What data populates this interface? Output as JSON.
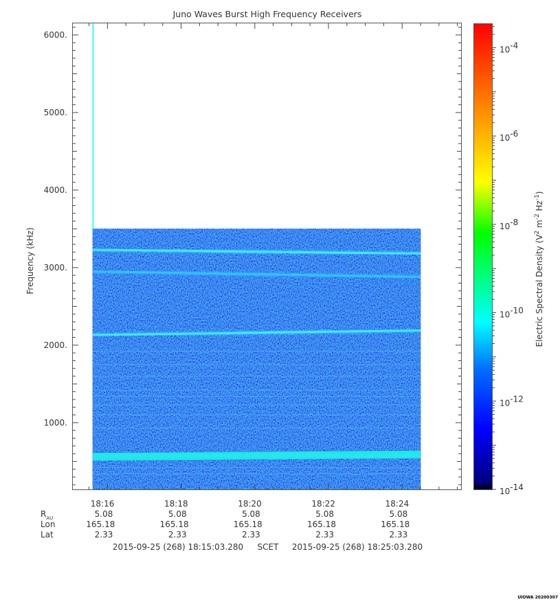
{
  "credit": "UIOWA 20200307",
  "chart_data": {
    "type": "heatmap",
    "title": "Juno Waves Burst High Frequency Receivers",
    "ylabel": "Frequency (kHz)",
    "ylim": [
      140,
      6150
    ],
    "yticks": [
      {
        "value": 1000,
        "label": "1000."
      },
      {
        "value": 2000,
        "label": "2000."
      },
      {
        "value": 3000,
        "label": "3000."
      },
      {
        "value": 4000,
        "label": "4000."
      },
      {
        "value": 5000,
        "label": "5000."
      },
      {
        "value": 6000,
        "label": "6000."
      }
    ],
    "xlim_minutes": [
      15.06,
      25.6
    ],
    "xticks": [
      {
        "minute": 16,
        "label": "18:16",
        "r_au": "5.08",
        "lon": "165.18",
        "lat": "2.33"
      },
      {
        "minute": 18,
        "label": "18:18",
        "r_au": "5.08",
        "lon": "165.18",
        "lat": "2.33"
      },
      {
        "minute": 20,
        "label": "18:20",
        "r_au": "5.08",
        "lon": "165.18",
        "lat": "2.33"
      },
      {
        "minute": 22,
        "label": "18:22",
        "r_au": "5.08",
        "lon": "165.18",
        "lat": "2.33"
      },
      {
        "minute": 24,
        "label": "18:24",
        "r_au": "5.08",
        "lon": "165.18",
        "lat": "2.33"
      }
    ],
    "ephemeris_labels": {
      "r": "R",
      "r_sub": "AU",
      "lon": "Lon",
      "lat": "Lat"
    },
    "time_range": {
      "start": "2015-09-25 (268) 18:15:03.280",
      "separator": "SCET",
      "end": "2015-09-25 (268) 18:25:03.280"
    },
    "data_extent": {
      "minute_start": 15.6,
      "minute_end": 24.5,
      "freq_max_khz": 3500
    },
    "spike": {
      "minute": 15.6,
      "freq_top_khz": 6150,
      "color": "#00ffff"
    },
    "background_level": "1e-12",
    "emission_bands": [
      {
        "freq_start_khz": 3230,
        "freq_end_khz": 3180,
        "intensity": "strong"
      },
      {
        "freq_start_khz": 2950,
        "freq_end_khz": 2880,
        "intensity": "medium"
      },
      {
        "freq_start_khz": 2130,
        "freq_end_khz": 2190,
        "intensity": "strong"
      },
      {
        "freq_start_khz": 560,
        "freq_end_khz": 590,
        "intensity": "very strong"
      }
    ],
    "narrow_lines_khz": [
      1920,
      1750,
      1600,
      1420,
      1340,
      1230,
      1100,
      930,
      420,
      340
    ],
    "colorbar": {
      "label": "Electric Spectral Density (V² m⁻² Hz⁻¹)",
      "label_base": "Electric Spectral Density (V",
      "label_m": " m",
      "label_hz": " Hz",
      "label_close": ")",
      "sup_2": "2",
      "sup_m2": "-2",
      "sup_m1": "-1",
      "scale": "log",
      "range_exp": [
        -14,
        -3.45
      ],
      "tick_exps": [
        -14,
        -12,
        -10,
        -8,
        -6,
        -4
      ],
      "tick_base": "10",
      "colormap": [
        "#000080",
        "#0000ff",
        "#0080ff",
        "#00ffff",
        "#00ff00",
        "#ffff00",
        "#ff8000",
        "#ff0000"
      ]
    }
  }
}
